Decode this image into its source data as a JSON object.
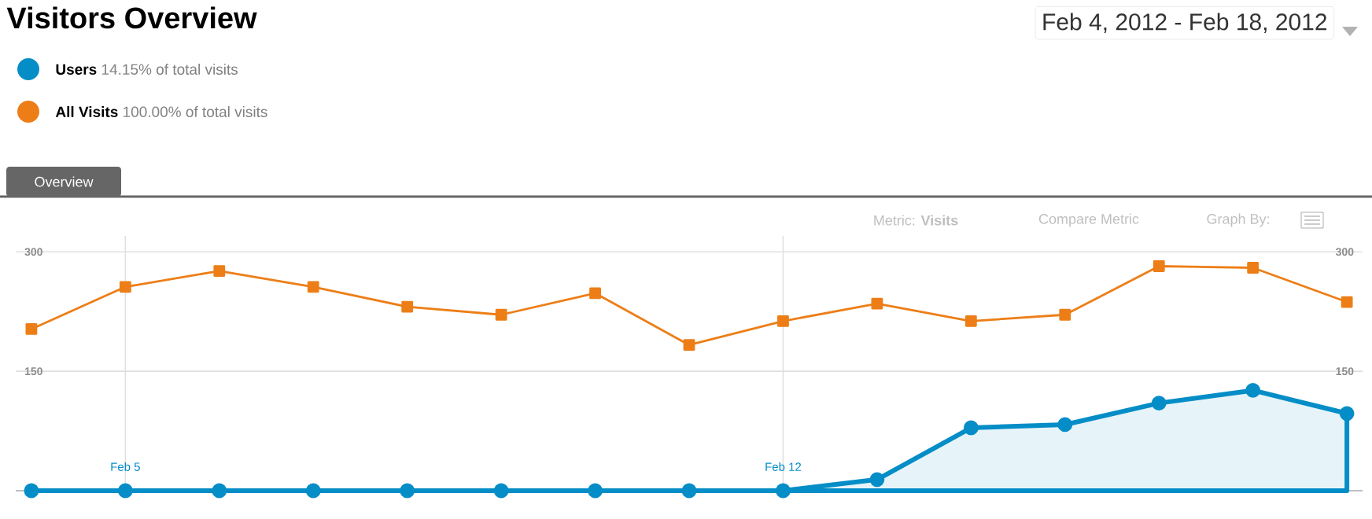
{
  "chart_data": {
    "type": "line",
    "title": "Visitors Overview",
    "x": [
      "2012-02-04",
      "2012-02-05",
      "2012-02-06",
      "2012-02-07",
      "2012-02-08",
      "2012-02-09",
      "2012-02-10",
      "2012-02-11",
      "2012-02-12",
      "2012-02-13",
      "2012-02-14",
      "2012-02-15",
      "2012-02-16",
      "2012-02-17",
      "2012-02-18"
    ],
    "series": [
      {
        "name": "Users",
        "type": "area",
        "color": "#058dc7",
        "marker": "circle",
        "values": [
          0,
          0,
          0,
          0,
          0,
          0,
          0,
          0,
          0,
          14,
          79,
          83,
          110,
          126,
          97
        ]
      },
      {
        "name": "All Visits",
        "color": "#ed7e17",
        "marker": "square",
        "values": [
          203,
          256,
          276,
          256,
          231,
          221,
          248,
          183,
          213,
          235,
          213,
          221,
          282,
          280,
          237
        ]
      }
    ],
    "xlim": [
      "2012-02-03T20:00",
      "2012-02-18T04:00"
    ],
    "xticks": [
      {
        "value": "2012-02-05",
        "label": "Feb 5"
      },
      {
        "value": "2012-02-12",
        "label": "Feb 12"
      }
    ],
    "ylim": [
      0,
      320
    ],
    "yticks": [
      150,
      300
    ],
    "y2lim": [
      0,
      320
    ],
    "y2ticks": [
      150,
      300
    ],
    "grid": true,
    "legend": "top left",
    "annotations": [
      "14.15% of total visits",
      "100.00% of total visits",
      "Feb 4, 2012 - Feb 18, 2012",
      "Overview",
      "Metric: **Visits**",
      "Compare Metric",
      "Graph By:"
    ]
  }
}
